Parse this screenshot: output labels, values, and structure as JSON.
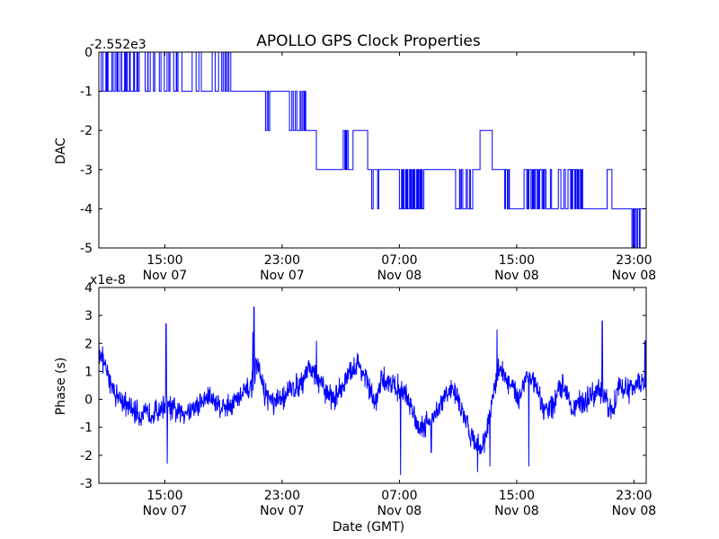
{
  "title": "APOLLO GPS Clock Properties",
  "chart_data": [
    {
      "type": "line",
      "ylabel": "DAC",
      "offset_label": "-2.552e3",
      "ylim": [
        -5,
        0
      ],
      "yticks": [
        "0",
        "-1",
        "-2",
        "-3",
        "-4",
        "-5"
      ],
      "xlim": [
        "Nov 07 10:30",
        "Nov 08 23:50"
      ],
      "xticks": [
        {
          "t": "Nov 07 15:00",
          "label1": "15:00",
          "label2": "Nov 07"
        },
        {
          "t": "Nov 07 23:00",
          "label1": "23:00",
          "label2": "Nov 07"
        },
        {
          "t": "Nov 08 07:00",
          "label1": "07:00",
          "label2": "Nov 08"
        },
        {
          "t": "Nov 08 15:00",
          "label1": "15:00",
          "label2": "Nov 08"
        },
        {
          "t": "Nov 08 23:00",
          "label1": "23:00",
          "label2": "Nov 08"
        }
      ],
      "series_color": "#0000ff",
      "segments": [
        {
          "start": "Nov 07 10:30",
          "end": "Nov 07 13:15",
          "base": -1,
          "alt": 0,
          "spikes": 12
        },
        {
          "start": "Nov 07 13:15",
          "end": "Nov 07 16:10",
          "base": 0,
          "alt": -1,
          "spikes": 8
        },
        {
          "start": "Nov 07 16:10",
          "end": "Nov 07 18:40",
          "base": -1,
          "alt": 0,
          "spikes": 3
        },
        {
          "start": "Nov 07 18:40",
          "end": "Nov 07 19:30",
          "base": 0,
          "alt": -1,
          "spikes": 3
        },
        {
          "start": "Nov 07 19:30",
          "end": "Nov 07 21:40",
          "base": -1,
          "alt": 0,
          "spikes": 0
        },
        {
          "start": "Nov 07 21:40",
          "end": "Nov 07 22:20",
          "base": -1,
          "alt": -2,
          "spikes": 2
        },
        {
          "start": "Nov 07 22:20",
          "end": "Nov 07 23:30",
          "base": -1,
          "alt": -1,
          "spikes": 0
        },
        {
          "start": "Nov 07 23:30",
          "end": "Nov 08 00:50",
          "base": -2,
          "alt": -1,
          "spikes": 5
        },
        {
          "start": "Nov 08 00:50",
          "end": "Nov 08 01:20",
          "base": -2,
          "alt": -2,
          "spikes": 0
        },
        {
          "start": "Nov 08 01:20",
          "end": "Nov 08 03:10",
          "base": -3,
          "alt": -3,
          "spikes": 0
        },
        {
          "start": "Nov 08 03:10",
          "end": "Nov 08 03:30",
          "base": -2,
          "alt": -3,
          "spikes": 2
        },
        {
          "start": "Nov 08 03:30",
          "end": "Nov 08 03:50",
          "base": -3,
          "alt": -3,
          "spikes": 0
        },
        {
          "start": "Nov 08 03:50",
          "end": "Nov 08 04:50",
          "base": -2,
          "alt": -2,
          "spikes": 0
        },
        {
          "start": "Nov 08 04:50",
          "end": "Nov 08 05:50",
          "base": -3,
          "alt": -4,
          "spikes": 2
        },
        {
          "start": "Nov 08 05:50",
          "end": "Nov 08 07:00",
          "base": -3,
          "alt": -3,
          "spikes": 0
        },
        {
          "start": "Nov 08 07:00",
          "end": "Nov 08 08:40",
          "base": -4,
          "alt": -3,
          "spikes": 12
        },
        {
          "start": "Nov 08 08:40",
          "end": "Nov 08 10:50",
          "base": -3,
          "alt": -3,
          "spikes": 0
        },
        {
          "start": "Nov 08 10:50",
          "end": "Nov 08 12:00",
          "base": -4,
          "alt": -3,
          "spikes": 4
        },
        {
          "start": "Nov 08 12:00",
          "end": "Nov 08 12:30",
          "base": -3,
          "alt": -3,
          "spikes": 0
        },
        {
          "start": "Nov 08 12:30",
          "end": "Nov 08 13:20",
          "base": -2,
          "alt": -2,
          "spikes": 0
        },
        {
          "start": "Nov 08 13:20",
          "end": "Nov 08 14:00",
          "base": -3,
          "alt": -3,
          "spikes": 0
        },
        {
          "start": "Nov 08 14:00",
          "end": "Nov 08 14:30",
          "base": -3,
          "alt": -4,
          "spikes": 2
        },
        {
          "start": "Nov 08 14:30",
          "end": "Nov 08 15:30",
          "base": -4,
          "alt": -4,
          "spikes": 0
        },
        {
          "start": "Nov 08 15:30",
          "end": "Nov 08 17:00",
          "base": -3,
          "alt": -4,
          "spikes": 9
        },
        {
          "start": "Nov 08 17:00",
          "end": "Nov 08 18:30",
          "base": -4,
          "alt": -3,
          "spikes": 3
        },
        {
          "start": "Nov 08 18:30",
          "end": "Nov 08 19:30",
          "base": -3,
          "alt": -4,
          "spikes": 6
        },
        {
          "start": "Nov 08 19:30",
          "end": "Nov 08 21:10",
          "base": -4,
          "alt": -4,
          "spikes": 0
        },
        {
          "start": "Nov 08 21:10",
          "end": "Nov 08 21:30",
          "base": -3,
          "alt": -3,
          "spikes": 0
        },
        {
          "start": "Nov 08 21:30",
          "end": "Nov 08 22:40",
          "base": -4,
          "alt": -4,
          "spikes": 0
        },
        {
          "start": "Nov 08 22:40",
          "end": "Nov 08 23:30",
          "base": -4,
          "alt": -5,
          "spikes": 4
        },
        {
          "start": "Nov 08 23:30",
          "end": "Nov 08 23:50",
          "base": -4,
          "alt": -4,
          "spikes": 0
        }
      ]
    },
    {
      "type": "line",
      "ylabel": "Phase (s)",
      "xlabel": "Date (GMT)",
      "offset_label": "x1e-8",
      "ylim": [
        -3,
        4
      ],
      "yticks": [
        "4",
        "3",
        "2",
        "1",
        "0",
        "-1",
        "-2",
        "-3"
      ],
      "xlim": [
        "Nov 07 10:30",
        "Nov 08 23:50"
      ],
      "xticks": [
        {
          "t": "Nov 07 15:00",
          "label1": "15:00",
          "label2": "Nov 07"
        },
        {
          "t": "Nov 07 23:00",
          "label1": "23:00",
          "label2": "Nov 07"
        },
        {
          "t": "Nov 08 07:00",
          "label1": "07:00",
          "label2": "Nov 08"
        },
        {
          "t": "Nov 08 15:00",
          "label1": "15:00",
          "label2": "Nov 08"
        },
        {
          "t": "Nov 08 23:00",
          "label1": "23:00",
          "label2": "Nov 08"
        }
      ],
      "series_color": "#0000ff",
      "trend": [
        [
          "Nov 07 10:30",
          1.8
        ],
        [
          "Nov 07 11:00",
          1.0
        ],
        [
          "Nov 07 11:40",
          0.2
        ],
        [
          "Nov 07 12:30",
          -0.3
        ],
        [
          "Nov 07 13:30",
          -0.6
        ],
        [
          "Nov 07 14:30",
          -0.4
        ],
        [
          "Nov 07 15:00",
          -0.2
        ],
        [
          "Nov 07 16:00",
          -0.5
        ],
        [
          "Nov 07 17:00",
          -0.3
        ],
        [
          "Nov 07 18:00",
          0.1
        ],
        [
          "Nov 07 19:00",
          -0.3
        ],
        [
          "Nov 07 20:00",
          0.0
        ],
        [
          "Nov 07 20:50",
          0.4
        ],
        [
          "Nov 07 21:20",
          1.2
        ],
        [
          "Nov 07 21:50",
          0.2
        ],
        [
          "Nov 07 22:30",
          -0.2
        ],
        [
          "Nov 07 23:30",
          0.3
        ],
        [
          "Nov 08 00:20",
          0.6
        ],
        [
          "Nov 08 00:50",
          1.2
        ],
        [
          "Nov 08 01:30",
          0.6
        ],
        [
          "Nov 08 02:30",
          0.0
        ],
        [
          "Nov 08 03:30",
          0.8
        ],
        [
          "Nov 08 04:10",
          1.3
        ],
        [
          "Nov 08 04:50",
          0.6
        ],
        [
          "Nov 08 05:20",
          -0.2
        ],
        [
          "Nov 08 05:50",
          0.7
        ],
        [
          "Nov 08 06:30",
          0.6
        ],
        [
          "Nov 08 07:20",
          0.2
        ],
        [
          "Nov 08 07:50",
          -0.3
        ],
        [
          "Nov 08 08:20",
          -1.0
        ],
        [
          "Nov 08 09:00",
          -0.8
        ],
        [
          "Nov 08 09:40",
          -0.4
        ],
        [
          "Nov 08 10:10",
          0.2
        ],
        [
          "Nov 08 10:50",
          0.3
        ],
        [
          "Nov 08 11:20",
          -0.6
        ],
        [
          "Nov 08 11:50",
          -1.2
        ],
        [
          "Nov 08 12:30",
          -1.8
        ],
        [
          "Nov 08 13:00",
          -1.1
        ],
        [
          "Nov 08 13:30",
          0.4
        ],
        [
          "Nov 08 13:50",
          1.2
        ],
        [
          "Nov 08 14:30",
          0.5
        ],
        [
          "Nov 08 15:10",
          0.1
        ],
        [
          "Nov 08 15:40",
          0.9
        ],
        [
          "Nov 08 16:10",
          0.6
        ],
        [
          "Nov 08 16:50",
          -0.4
        ],
        [
          "Nov 08 17:30",
          -0.2
        ],
        [
          "Nov 08 18:10",
          0.6
        ],
        [
          "Nov 08 18:50",
          -0.3
        ],
        [
          "Nov 08 19:30",
          -0.1
        ],
        [
          "Nov 08 20:00",
          0.1
        ],
        [
          "Nov 08 20:30",
          0.3
        ],
        [
          "Nov 08 21:00",
          0.0
        ],
        [
          "Nov 08 21:30",
          -0.4
        ],
        [
          "Nov 08 22:00",
          0.5
        ],
        [
          "Nov 08 22:40",
          0.3
        ],
        [
          "Nov 08 23:10",
          0.6
        ],
        [
          "Nov 08 23:30",
          0.5
        ],
        [
          "Nov 08 23:50",
          0.3
        ]
      ],
      "noise_amplitude": 0.45,
      "peaks": [
        [
          "Nov 07 15:05",
          2.7
        ],
        [
          "Nov 07 21:05",
          3.3
        ],
        [
          "Nov 07 21:00",
          2.4
        ],
        [
          "Nov 08 01:20",
          2.1
        ],
        [
          "Nov 08 13:40",
          2.5
        ],
        [
          "Nov 08 20:50",
          2.8
        ],
        [
          "Nov 07 10:30",
          2.3
        ],
        [
          "Nov 08 23:45",
          2.1
        ]
      ],
      "troughs": [
        [
          "Nov 07 15:10",
          -2.3
        ],
        [
          "Nov 08 07:05",
          -2.7
        ],
        [
          "Nov 08 12:20",
          -2.6
        ],
        [
          "Nov 08 15:50",
          -2.4
        ],
        [
          "Nov 08 09:10",
          -1.9
        ],
        [
          "Nov 08 13:10",
          -2.4
        ]
      ]
    }
  ]
}
